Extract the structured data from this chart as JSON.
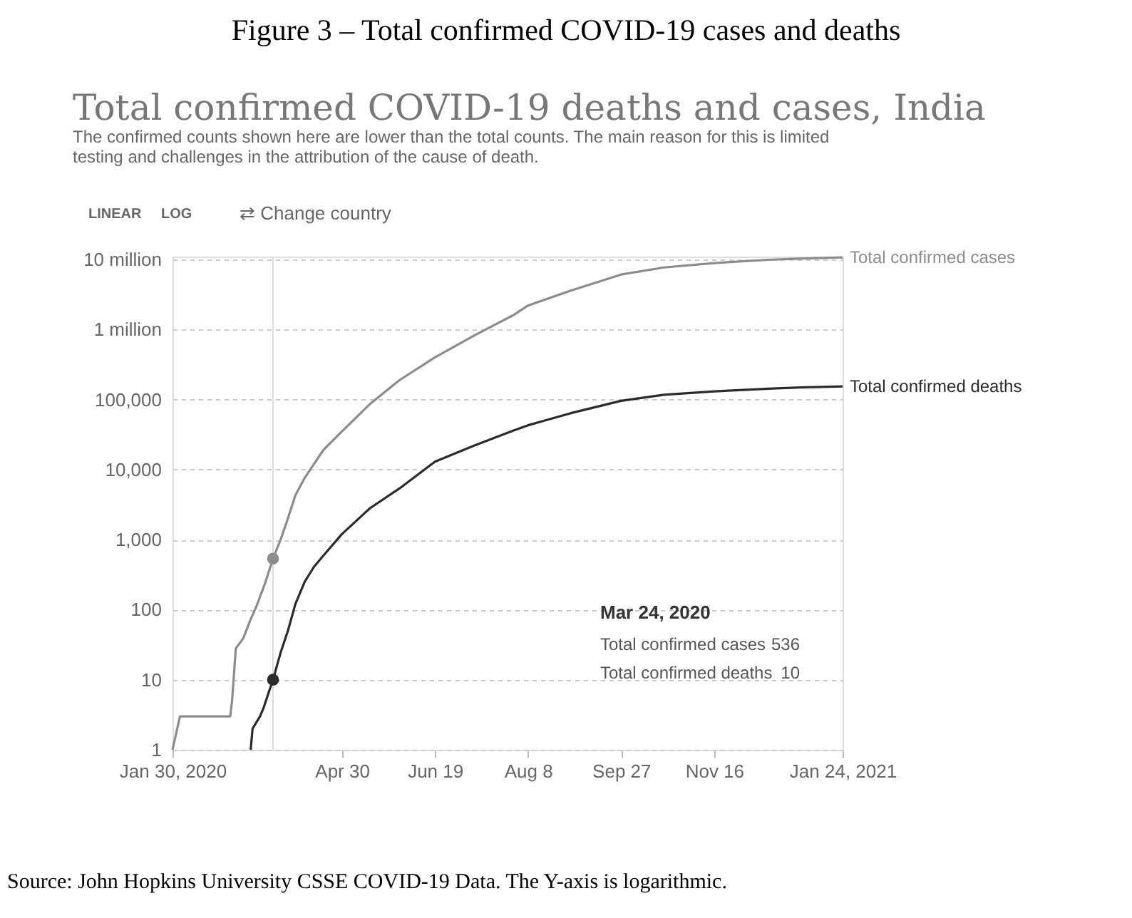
{
  "chart_data": {
    "type": "line",
    "title": "Figure 3 – Total confirmed COVID-19 cases and deaths",
    "subtitle": "Total confirmed COVID-19 deaths and cases, India",
    "annotations": [
      "The confirmed counts shown here are lower than the total counts. The main reason for this is limited testing and challenges in the attribution of the cause of death.",
      "LINEAR",
      "LOG",
      "⇄ Change country",
      "Mar 24, 2020",
      "Total confirmed cases",
      "536",
      "Total confirmed deaths",
      "10",
      "Source: John Hopkins University CSSE COVID-19 Data. The Y-axis is logarithmic."
    ],
    "series": [
      {
        "name": "Total confirmed cases",
        "color": "#8c8c8c",
        "x": [
          "2020-01-30",
          "2020-02-03",
          "2020-03-01",
          "2020-03-02",
          "2020-03-04",
          "2020-03-08",
          "2020-03-12",
          "2020-03-15",
          "2020-03-20",
          "2020-03-24",
          "2020-03-28",
          "2020-04-01",
          "2020-04-05",
          "2020-04-10",
          "2020-04-15",
          "2020-04-20",
          "2020-04-30",
          "2020-05-15",
          "2020-05-31",
          "2020-06-19",
          "2020-07-10",
          "2020-07-31",
          "2020-08-08",
          "2020-08-31",
          "2020-09-27",
          "2020-10-20",
          "2020-11-16",
          "2020-12-15",
          "2021-01-01",
          "2021-01-24"
        ],
        "values": [
          1,
          3,
          3,
          5,
          28,
          39,
          73,
          110,
          250,
          536,
          990,
          2000,
          4300,
          7600,
          12000,
          19000,
          35000,
          86000,
          190000,
          400000,
          820000,
          1600000,
          2200000,
          3600000,
          6100000,
          7700000,
          8900000,
          9900000,
          10300000,
          10700000
        ]
      },
      {
        "name": "Total confirmed deaths",
        "color": "#2b2b2b",
        "x": [
          "2020-03-12",
          "2020-03-13",
          "2020-03-17",
          "2020-03-19",
          "2020-03-22",
          "2020-03-24",
          "2020-03-28",
          "2020-04-01",
          "2020-04-05",
          "2020-04-10",
          "2020-04-15",
          "2020-04-20",
          "2020-04-30",
          "2020-05-15",
          "2020-05-31",
          "2020-06-19",
          "2020-07-10",
          "2020-07-31",
          "2020-08-08",
          "2020-08-31",
          "2020-09-27",
          "2020-10-20",
          "2020-11-16",
          "2020-12-15",
          "2021-01-01",
          "2021-01-24"
        ],
        "values": [
          1,
          2,
          3,
          4,
          7,
          10,
          24,
          50,
          120,
          250,
          410,
          590,
          1200,
          2800,
          5400,
          13000,
          22000,
          36000,
          43000,
          64000,
          96000,
          117000,
          131000,
          143000,
          149000,
          154000
        ]
      },
      {
        "type": "scatter",
        "marker": "circle",
        "color": "#8c8c8c",
        "x": [
          "2020-03-24"
        ],
        "values": [
          536
        ]
      },
      {
        "type": "scatter",
        "marker": "circle",
        "color": "#2b2b2b",
        "x": [
          "2020-03-24"
        ],
        "values": [
          10
        ]
      }
    ],
    "xlim": [
      "2020-01-30",
      "2021-01-24"
    ],
    "xticks": [
      {
        "value": "2020-01-30",
        "label": "Jan 30, 2020"
      },
      {
        "value": "2020-04-30",
        "label": "Apr 30"
      },
      {
        "value": "2020-06-19",
        "label": "Jun 19"
      },
      {
        "value": "2020-08-08",
        "label": "Aug 8"
      },
      {
        "value": "2020-09-27",
        "label": "Sep 27"
      },
      {
        "value": "2020-11-16",
        "label": "Nov 16"
      },
      {
        "value": "2021-01-24",
        "label": "Jan 24, 2021"
      }
    ],
    "ylim": [
      1,
      11000000
    ],
    "yticks": [
      {
        "value": 1,
        "label": "1"
      },
      {
        "value": 10,
        "label": "10"
      },
      {
        "value": 100,
        "label": "100"
      },
      {
        "value": 1000,
        "label": "1,000"
      },
      {
        "value": 10000,
        "label": "10,000"
      },
      {
        "value": 100000,
        "label": "100,000"
      },
      {
        "value": 1000000,
        "label": "1 million"
      },
      {
        "value": 10000000,
        "label": "10 million"
      }
    ],
    "log": true,
    "grid": "y",
    "legend": false,
    "ref_lines": [
      {
        "axis": "x",
        "value": "2020-03-24",
        "color": "#dddddd"
      }
    ]
  }
}
